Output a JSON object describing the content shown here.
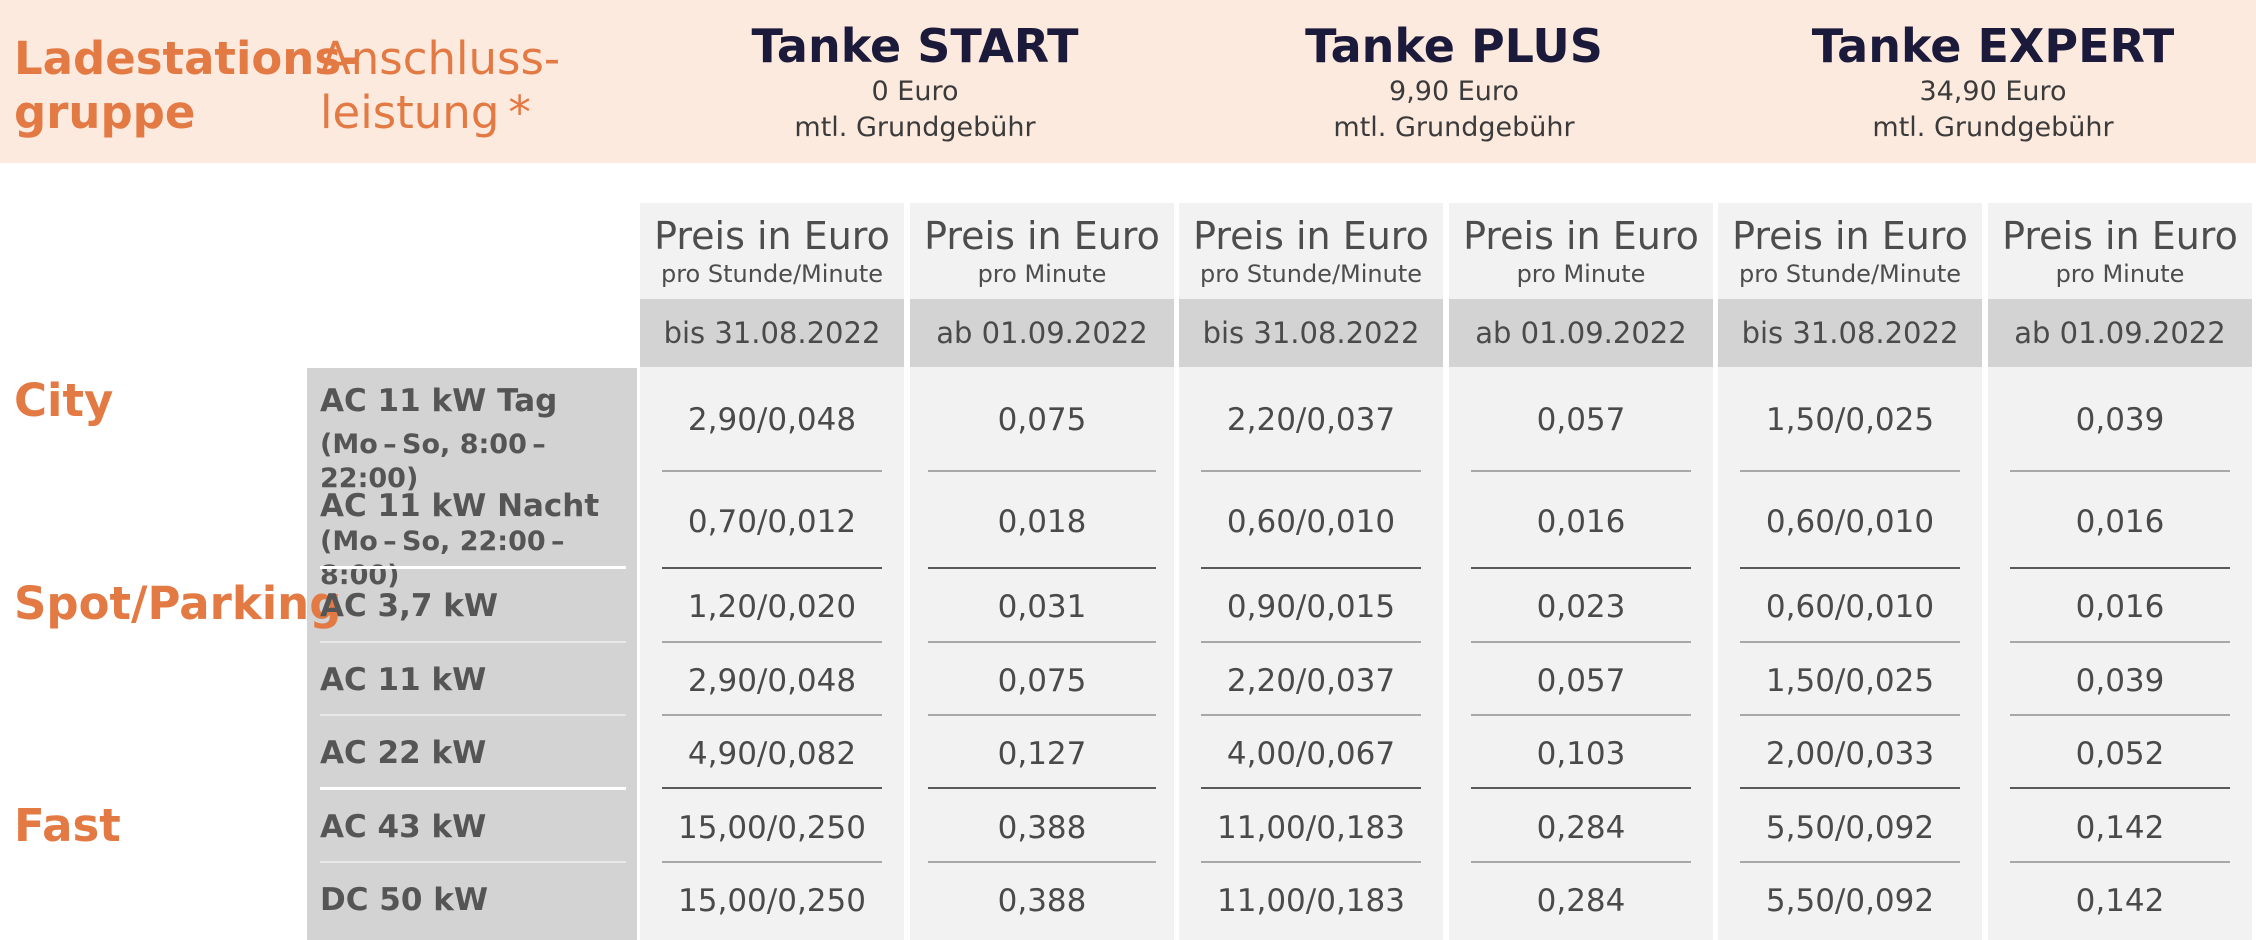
{
  "header": {
    "group_label": [
      "Ladestations-",
      "gruppe"
    ],
    "power_label": [
      "Anschluss-",
      "leistung *"
    ],
    "plans": [
      {
        "name": "Tanke START",
        "fee": "0 Euro",
        "fee_label": "mtl. Grundgebühr"
      },
      {
        "name": "Tanke PLUS",
        "fee": "9,90 Euro",
        "fee_label": "mtl. Grundgebühr"
      },
      {
        "name": "Tanke EXPERT",
        "fee": "34,90 Euro",
        "fee_label": "mtl. Grundgebühr"
      }
    ]
  },
  "columns": [
    {
      "title": "Preis in Euro",
      "unit": "pro Stunde/Minute",
      "date": "bis 31.08.2022"
    },
    {
      "title": "Preis in Euro",
      "unit": "pro Minute",
      "date": "ab 01.09.2022"
    },
    {
      "title": "Preis in Euro",
      "unit": "pro Stunde/Minute",
      "date": "bis 31.08.2022"
    },
    {
      "title": "Preis in Euro",
      "unit": "pro Minute",
      "date": "ab 01.09.2022"
    },
    {
      "title": "Preis in Euro",
      "unit": "pro Stunde/Minute",
      "date": "bis 31.08.2022"
    },
    {
      "title": "Preis in Euro",
      "unit": "pro Minute",
      "date": "ab 01.09.2022"
    }
  ],
  "groups": [
    "City",
    "Spot/Parking",
    "Fast"
  ],
  "rows": [
    {
      "label": "AC 11 kW Tag",
      "sub": "(Mo – So, 8:00 – 22:00)",
      "values": [
        "2,90/0,048",
        "0,075",
        "2,20/0,037",
        "0,057",
        "1,50/0,025",
        "0,039"
      ]
    },
    {
      "label": "AC 11 kW Nacht",
      "sub": "(Mo – So, 22:00 – 8:00)",
      "values": [
        "0,70/0,012",
        "0,018",
        "0,60/0,010",
        "0,016",
        "0,60/0,010",
        "0,016"
      ]
    },
    {
      "label": "AC 3,7 kW",
      "sub": "",
      "values": [
        "1,20/0,020",
        "0,031",
        "0,90/0,015",
        "0,023",
        "0,60/0,010",
        "0,016"
      ]
    },
    {
      "label": "AC 11 kW",
      "sub": "",
      "values": [
        "2,90/0,048",
        "0,075",
        "2,20/0,037",
        "0,057",
        "1,50/0,025",
        "0,039"
      ]
    },
    {
      "label": "AC 22 kW",
      "sub": "",
      "values": [
        "4,90/0,082",
        "0,127",
        "4,00/0,067",
        "0,103",
        "2,00/0,033",
        "0,052"
      ]
    },
    {
      "label": "AC 43 kW",
      "sub": "",
      "values": [
        "15,00/0,250",
        "0,388",
        "11,00/0,183",
        "0,284",
        "5,50/0,092",
        "0,142"
      ]
    },
    {
      "label": "DC 50 kW",
      "sub": "",
      "values": [
        "15,00/0,250",
        "0,388",
        "11,00/0,183",
        "0,284",
        "5,50/0,092",
        "0,142"
      ]
    }
  ],
  "colors": {
    "accent": "#e37a44",
    "plan_title": "#1b1a3a",
    "header_band": "#fdeadf",
    "label_col": "#d3d3d3",
    "data_col": "#f2f2f2"
  }
}
